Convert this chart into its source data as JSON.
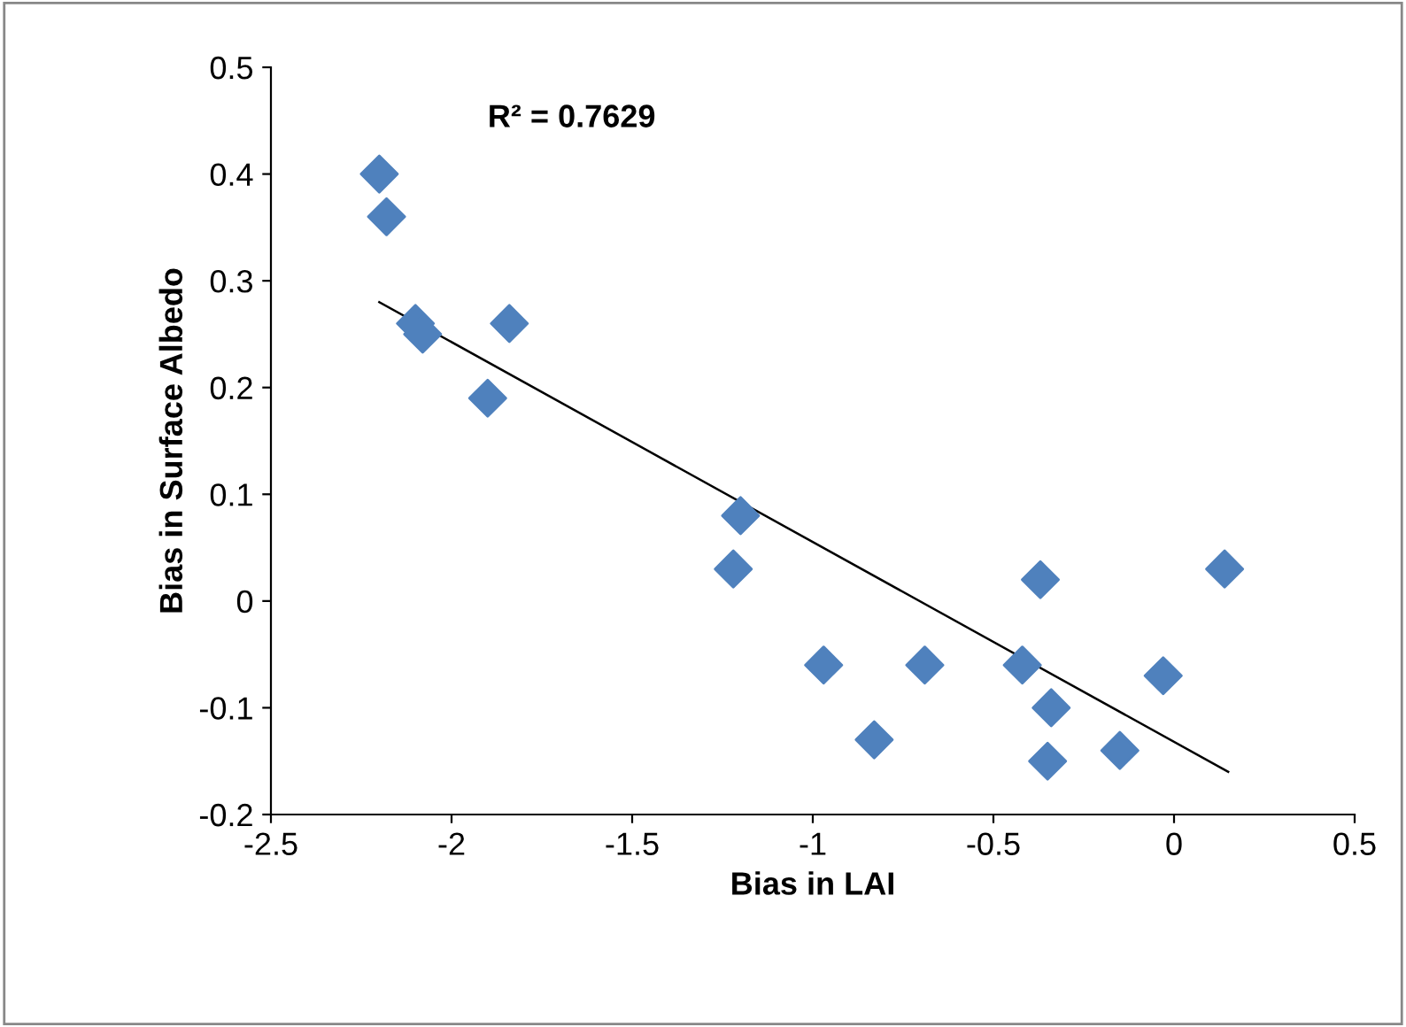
{
  "chart_data": {
    "type": "scatter",
    "xlabel": "Bias in LAI",
    "ylabel": "Bias in Surface Albedo",
    "annotations": [
      "R² = 0.7629"
    ],
    "marker": "diamond",
    "grid": false,
    "legend": false,
    "xlim": [
      -2.5,
      0.5
    ],
    "xticks": [
      -2.5,
      -2,
      -1.5,
      -1,
      -0.5,
      0,
      0.5
    ],
    "ylim": [
      -0.2,
      0.5
    ],
    "yticks": [
      -0.2,
      -0.1,
      0,
      0.1,
      0.2,
      0.3,
      0.4,
      0.5
    ],
    "series": [
      {
        "color": "#4f81bd",
        "x": [
          -2.2,
          -2.18,
          -2.1,
          -2.08,
          -1.84,
          -1.9,
          -1.2,
          -1.22,
          -0.97,
          -0.83,
          -0.69,
          -0.42,
          -0.37,
          -0.34,
          -0.35,
          -0.15,
          -0.03,
          0.14
        ],
        "values": [
          0.4,
          0.36,
          0.26,
          0.25,
          0.26,
          0.19,
          0.08,
          0.03,
          -0.06,
          -0.13,
          -0.06,
          -0.06,
          0.02,
          -0.1,
          -0.15,
          -0.14,
          -0.07,
          0.03
        ]
      },
      {
        "type": "line",
        "color": "#000000",
        "marker": "none",
        "x": [
          -2.2,
          0.15
        ],
        "values": [
          0.28,
          -0.16
        ]
      }
    ]
  }
}
